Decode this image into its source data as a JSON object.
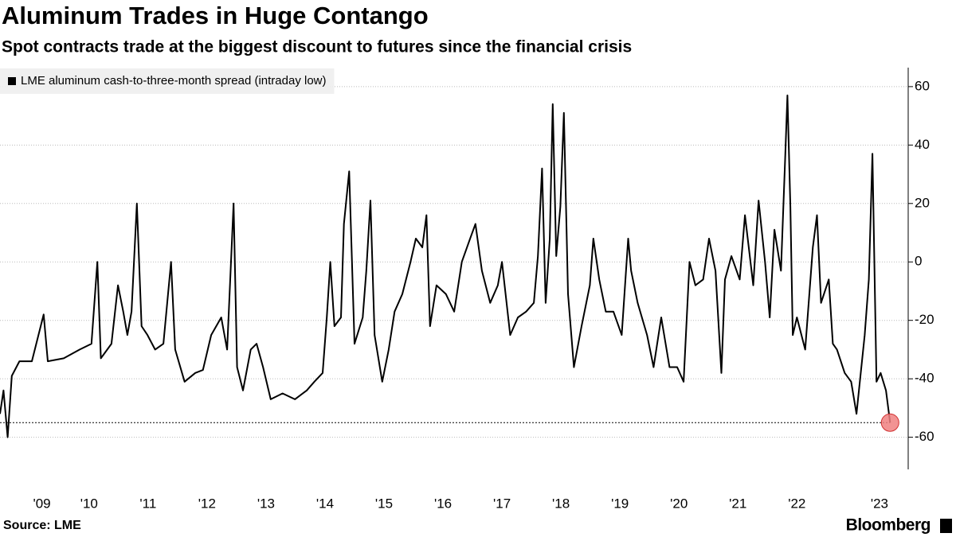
{
  "chart_data": {
    "type": "line",
    "title": "Aluminum Trades in Huge Contango",
    "subtitle": "Spot contracts trade at the biggest discount to futures since the financial crisis",
    "source": "Source: LME",
    "brand": "Bloomberg",
    "x": [
      2008.49,
      2008.55,
      2008.62,
      2008.69,
      2008.82,
      2009.03,
      2009.23,
      2009.3,
      2009.57,
      2009.84,
      2010.04,
      2010.14,
      2010.2,
      2010.38,
      2010.49,
      2010.58,
      2010.65,
      2010.72,
      2010.81,
      2010.89,
      2010.99,
      2011.12,
      2011.26,
      2011.39,
      2011.46,
      2011.62,
      2011.8,
      2011.93,
      2012.07,
      2012.24,
      2012.34,
      2012.45,
      2012.51,
      2012.61,
      2012.74,
      2012.84,
      2012.95,
      2013.08,
      2013.28,
      2013.49,
      2013.69,
      2013.82,
      2013.96,
      2014.03,
      2014.09,
      2014.16,
      2014.27,
      2014.32,
      2014.41,
      2014.5,
      2014.64,
      2014.7,
      2014.77,
      2014.84,
      2014.97,
      2015.08,
      2015.18,
      2015.31,
      2015.45,
      2015.54,
      2015.65,
      2015.72,
      2015.78,
      2015.89,
      2016.05,
      2016.19,
      2016.32,
      2016.46,
      2016.55,
      2016.66,
      2016.8,
      2016.93,
      2017.0,
      2017.14,
      2017.27,
      2017.41,
      2017.54,
      2017.61,
      2017.68,
      2017.74,
      2017.81,
      2017.86,
      2017.92,
      2017.99,
      2018.05,
      2018.12,
      2018.22,
      2018.35,
      2018.49,
      2018.55,
      2018.65,
      2018.76,
      2018.89,
      2019.03,
      2019.14,
      2019.19,
      2019.3,
      2019.46,
      2019.57,
      2019.7,
      2019.84,
      2019.97,
      2020.08,
      2020.18,
      2020.28,
      2020.41,
      2020.51,
      2020.62,
      2020.72,
      2020.78,
      2020.89,
      2021.03,
      2021.12,
      2021.26,
      2021.35,
      2021.46,
      2021.54,
      2021.62,
      2021.73,
      2021.8,
      2021.84,
      2021.89,
      2021.93,
      2022.0,
      2022.14,
      2022.27,
      2022.34,
      2022.41,
      2022.54,
      2022.61,
      2022.68,
      2022.81,
      2022.92,
      2023.01,
      2023.15,
      2023.22,
      2023.28,
      2023.35,
      2023.42,
      2023.51,
      2023.58
    ],
    "series": [
      {
        "name": "LME aluminum cash-to-three-month spread (intraday low)",
        "color": "#000000",
        "values": [
          -52,
          -44,
          -60,
          -39,
          -34,
          -34,
          -18,
          -34,
          -33,
          -30,
          -28,
          0,
          -33,
          -28,
          -8,
          -17,
          -25,
          -17,
          20,
          -22,
          -25,
          -30,
          -28,
          0,
          -30,
          -41,
          -38,
          -37,
          -25,
          -19,
          -30,
          20,
          -36,
          -44,
          -30,
          -28,
          -36,
          -47,
          -45,
          -47,
          -44,
          -41,
          -38,
          -19,
          0,
          -22,
          -19,
          13,
          31,
          -28,
          -19,
          -3,
          21,
          -25,
          -41,
          -30,
          -17,
          -11,
          0,
          8,
          5,
          16,
          -22,
          -8,
          -11,
          -17,
          0,
          8,
          13,
          -3,
          -14,
          -8,
          0,
          -25,
          -19,
          -17,
          -14,
          2,
          32,
          -14,
          8,
          54,
          2,
          19,
          51,
          -11,
          -36,
          -22,
          -8,
          8,
          -6,
          -17,
          -17,
          -25,
          8,
          -3,
          -14,
          -25,
          -36,
          -19,
          -36,
          -36,
          -41,
          0,
          -8,
          -6,
          8,
          -3,
          -38,
          -6,
          2,
          -6,
          16,
          -8,
          21,
          0,
          -19,
          11,
          -3,
          35,
          57,
          19,
          -25,
          -19,
          -30,
          5,
          16,
          -14,
          -6,
          -28,
          -30,
          -38,
          -41,
          -52,
          -25,
          -6,
          37,
          -41,
          -38,
          -44,
          -55
        ]
      }
    ],
    "xlim": [
      2008.49,
      2023.86
    ],
    "xticks": [
      {
        "value": 2009.2,
        "label": "'09"
      },
      {
        "value": 2010,
        "label": "'10"
      },
      {
        "value": 2011,
        "label": "'11"
      },
      {
        "value": 2012,
        "label": "'12"
      },
      {
        "value": 2013,
        "label": "'13"
      },
      {
        "value": 2014,
        "label": "'14"
      },
      {
        "value": 2015,
        "label": "'15"
      },
      {
        "value": 2016,
        "label": "'16"
      },
      {
        "value": 2017,
        "label": "'17"
      },
      {
        "value": 2018,
        "label": "'18"
      },
      {
        "value": 2019,
        "label": "'19"
      },
      {
        "value": 2020,
        "label": "'20"
      },
      {
        "value": 2021,
        "label": "'21"
      },
      {
        "value": 2022,
        "label": "'22"
      },
      {
        "value": 2023.4,
        "label": "'23"
      }
    ],
    "ylim": [
      -71,
      66.5
    ],
    "yticks": [
      -60,
      -40,
      -20,
      0,
      20,
      40,
      60
    ],
    "grid": true,
    "legend": "top-left"
  }
}
